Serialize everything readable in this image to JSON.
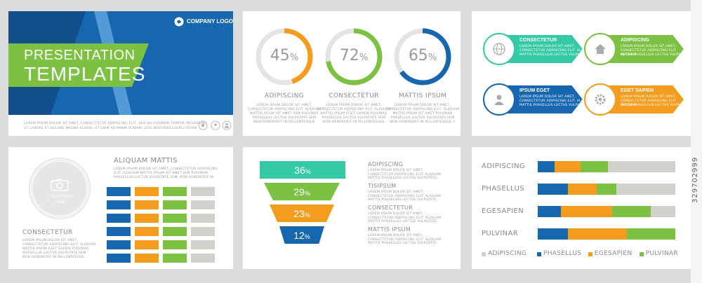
{
  "cover": {
    "logo_text": "COMPANY LOGO",
    "title_line1": "PRESENTATION",
    "title_line2": "TEMPLATES",
    "body_line1": "LOREM IPSUM DOLOR SIT AMET, CONSECTETUR ADIPISCING ELIT, SED DO EIUSMOD TEMPOR INCIDIDUNT",
    "body_line2": "UT LABORE ET DOLORE MAGNA ALIQUA. UT ENIM AD MINIM VENIAM, QUIS NOSTRUD EXERCITATION",
    "colors": {
      "blue": "#1766b0",
      "dark_blue": "#124f8c",
      "green": "#7cc142",
      "light_blue": "#5aa0dc"
    }
  },
  "donuts": [
    {
      "value": "45",
      "pct": "%",
      "fraction": 0.45,
      "color": "#f39c1d",
      "label": "ADIPISCING",
      "text": [
        "LOREM IPSUM DOLOR SIT AMET,",
        "CONSECTETUR ADIPISCING ELIT. ALIQUAM",
        "MATTIS IPSUM SIT AMET SEM PULVINAR",
        "PHASELLUS LUCTUS VULPUTATE SEM",
        "NON HENDRERIT IN PELLENTESQUE"
      ]
    },
    {
      "value": "72",
      "pct": "%",
      "fraction": 0.72,
      "color": "#7cc142",
      "label": "CONSECTETUR",
      "text": [
        "LOREM IPSUM DOLOR SIT AMET,",
        "CONSECTETUR ADIPISCING ELIT. ALIQUAM",
        "MATTIS IPSUM EGET SAPIEN PULVINAR",
        "PHASELLUS LUCTUS VULPUTATE SEM",
        "NON HENDRERIT IN PELLENTESQUE"
      ]
    },
    {
      "value": "65",
      "pct": "%",
      "fraction": 0.65,
      "color": "#1766b0",
      "label": "MATTIS IPSUM",
      "text": [
        "LOREM IPSUM DOLOR SIT AMET,",
        "CONSECTETUR ADIPISCING ELIT. ALIQUAM",
        "MATTIS IPSUM SIT AMET PULVINAR",
        "PHASELLUS LUCTUS VULPUTATE SEM",
        "NON HENDRERIT IN PELLENTESQUE A"
      ]
    }
  ],
  "arrows": [
    {
      "title": "CONSECTETUR",
      "icon": "globe-icon",
      "color": "#35c9a5",
      "text": [
        "LOREM IPSUM DOLOR SIT AMET,",
        "CONSECTETUR ADIPISCING ELIT. ALIQUAM",
        "MATTIS PHASELLUS LUCTUS VULPUTATE"
      ]
    },
    {
      "title": "ADIPISCING",
      "icon": "home-icon",
      "color": "#7cc142",
      "text": [
        "LOREM IPSUM DOLOR SIT AMET,",
        "CONSECTETUR ADIPISCING ELIT. ALIQUAM",
        "MATTIS PHASELLUS LUCTUS VULPUTATE"
      ]
    },
    {
      "title": "IPSUM EGET",
      "icon": "user-icon",
      "color": "#1766b0",
      "text": [
        "LOREM IPSUM DOLOR SIT AMET,",
        "CONSECTETUR ADIPISCING ELIT. ALIQUAM",
        "MATTIS PHASELLUS LUCTUS VULPUTATE"
      ]
    },
    {
      "title": "EGET SAPIEN",
      "icon": "gear-icon",
      "color": "#f39c1d",
      "text": [
        "LOREM IPSUM DOLOR SIT AMET,",
        "CONSECTETUR ADIPISCING ELIT. ALIQUAM",
        "MATTIS PHASELLUS LUCTUS VULPUTATE"
      ]
    }
  ],
  "photo_slide": {
    "photo_text_line1": "YOUR PHOTO",
    "photo_text_line2": "HERE",
    "title": "ALIQUAM MATTIS",
    "body": [
      "LOREM IPSUM DOLOR SIT AMET, CONSECTETUR ADIPISCING",
      "ELIT. ALIQUAM MATTIS IPSUM SIT AMET SEM PULVINAR",
      "PHASELLUS LUCTUS VULPUTATE SEM, NON HENDRERIT IN"
    ],
    "caption": "CONSECTETUR",
    "caption_body": [
      "LOREM IPSUM DOLOR SIT AMET,",
      "CONSECTETUR ADIPISCING ELIT. ALIQUAM",
      "MATTIS IPSUM EGET SAPIEN PULVINAR",
      "PHASELLUS LUCTUS VULPUTATE SEM",
      "NON HENDRERIT IN PELLENTESQUE"
    ],
    "grid_colors": [
      "#1766b0",
      "#f39c1d",
      "#7cc142",
      "#d2d0cb"
    ]
  },
  "funnel": [
    {
      "value": "36",
      "pct": "%",
      "color": "#35c9a5",
      "label": "ADIPISCING",
      "text": [
        "LOREM IPSUM DOLOR SIT AMET,",
        "CONSECTETUR ADIPISCING ELIT. ALIQUAM",
        "MATTIS PHASELLUS LUCTUS VULPUTATE"
      ]
    },
    {
      "value": "29",
      "pct": "%",
      "color": "#7cc142",
      "label": "TISIPSUM",
      "text": [
        "LOREM IPSUM DOLOR SIT AMET,",
        "CONSECTETUR ADIPISCING ELIT. ALIQUAM",
        "MATTIS PHASELLUS LUCTUS VULPUTATE"
      ]
    },
    {
      "value": "23",
      "pct": "%",
      "color": "#f39c1d",
      "label": "CONSECTETUR",
      "text": [
        "LOREM IPSUM DOLOR SIT AMET,",
        "CONSECTETUR ADIPISCING ELIT. ALIQUAM",
        "MATTIS PHASELLUS LUCTUS VULPUTATE"
      ]
    },
    {
      "value": "12",
      "pct": "%",
      "color": "#1766b0",
      "label": "MATTIS IPSUM",
      "text": [
        "LOREM IPSUM DOLOR SIT AMET,",
        "CONSECTETUR ADIPISCING ELIT. ALIQUAM",
        "MATTIS PHASELLUS LUCTUS VULPUTATE"
      ]
    }
  ],
  "stacked_bars": {
    "rows": [
      {
        "label": "ADIPISCING",
        "segments": [
          {
            "c": "#1766b0",
            "v": 12
          },
          {
            "c": "#f39c1d",
            "v": 19
          },
          {
            "c": "#7cc142",
            "v": 20
          },
          {
            "c": "#d2d0cb",
            "v": 49
          }
        ]
      },
      {
        "label": "PHASELLUS",
        "segments": [
          {
            "c": "#1766b0",
            "v": 22
          },
          {
            "c": "#f39c1d",
            "v": 21
          },
          {
            "c": "#7cc142",
            "v": 14
          },
          {
            "c": "#d2d0cb",
            "v": 43
          }
        ]
      },
      {
        "label": "EGESAPIEN",
        "segments": [
          {
            "c": "#1766b0",
            "v": 17
          },
          {
            "c": "#f39c1d",
            "v": 37
          },
          {
            "c": "#7cc142",
            "v": 28
          },
          {
            "c": "#d2d0cb",
            "v": 18
          }
        ]
      },
      {
        "label": "PULVINAR",
        "segments": [
          {
            "c": "#1766b0",
            "v": 22
          },
          {
            "c": "#f39c1d",
            "v": 43
          },
          {
            "c": "#7cc142",
            "v": 35
          }
        ]
      }
    ],
    "legend": [
      {
        "label": "ADIPISCING",
        "color": "#d2d0cb"
      },
      {
        "label": "PHASELLUS",
        "color": "#1766b0"
      },
      {
        "label": "EGESAPIEN",
        "color": "#f39c1d"
      },
      {
        "label": "PULVINAR",
        "color": "#7cc142"
      }
    ]
  },
  "stock_id": "329702999"
}
